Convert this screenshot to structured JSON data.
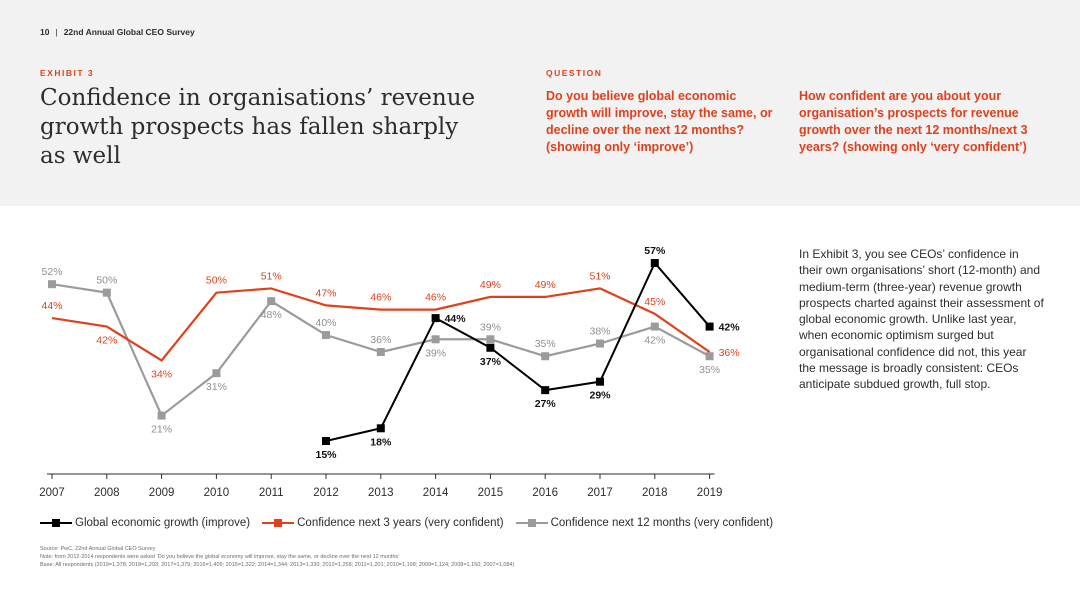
{
  "header": {
    "page_number": "10",
    "separator": "|",
    "publication": "22nd Annual Global CEO Survey",
    "exhibit_label": "EXHIBIT 3",
    "title": "Confidence in organisations’ revenue growth prospects has fallen sharply as well",
    "question_label": "QUESTION",
    "question_1": "Do you believe global economic growth will improve, stay the same, or decline over the next 12 months? (showing only ‘improve’)",
    "question_2": "How confident are you about your organisation’s prospects for revenue growth over the next 12 months/next 3 years? (showing only ‘very confident’)"
  },
  "side_text": "In Exhibit 3, you see CEOs’ confidence in their own organisations’ short (12-month) and medium-term (three-year) revenue growth prospects charted against their assessment of global economic growth. Unlike last year, when economic optimism surged but organisational confidence did not, this year the message is broadly consistent: CEOs anticipate subdued growth, full stop.",
  "colors": {
    "global": "#000000",
    "three_year": "#e0401c",
    "twelve_month": "#9b9b9b",
    "band": "#f2f2f2",
    "accent": "#e0401c"
  },
  "chart_data": {
    "type": "line",
    "x": [
      "2007",
      "2008",
      "2009",
      "2010",
      "2011",
      "2012",
      "2013",
      "2014",
      "2015",
      "2016",
      "2017",
      "2018",
      "2019"
    ],
    "ylim": [
      10,
      60
    ],
    "grid": false,
    "legend_position": "bottom",
    "series": [
      {
        "key": "global",
        "name": "Global economic growth (improve)",
        "color": "#000000",
        "marker": "square",
        "values": [
          null,
          null,
          null,
          null,
          null,
          15,
          18,
          44,
          37,
          27,
          29,
          57,
          42
        ]
      },
      {
        "key": "three_year",
        "name": "Confidence next 3 years (very confident)",
        "color": "#e0401c",
        "marker": "none",
        "values": [
          44,
          42,
          34,
          50,
          51,
          47,
          46,
          46,
          49,
          49,
          51,
          45,
          36
        ]
      },
      {
        "key": "twelve_month",
        "name": "Confidence next 12 months (very confident)",
        "color": "#9b9b9b",
        "marker": "square",
        "values": [
          52,
          50,
          21,
          31,
          48,
          40,
          36,
          39,
          39,
          35,
          38,
          42,
          35
        ]
      }
    ]
  },
  "footnotes": [
    "Source: PwC, 22nd Annual Global CEO Survey",
    "Note: from 2012-2014 respondents were asked ‘Do you believe the global economy will improve, stay the same, or decline over the next 12 months’",
    "Base: All respondents (2019=1,378; 2018=1,293; 2017=1,379; 2016=1,409; 2015=1,322; 2014=1,344; 2013=1,330; 2012=1,258; 2011=1,201; 2010=1,198; 2009=1,124; 2008=1,150; 2007=1,084)"
  ]
}
